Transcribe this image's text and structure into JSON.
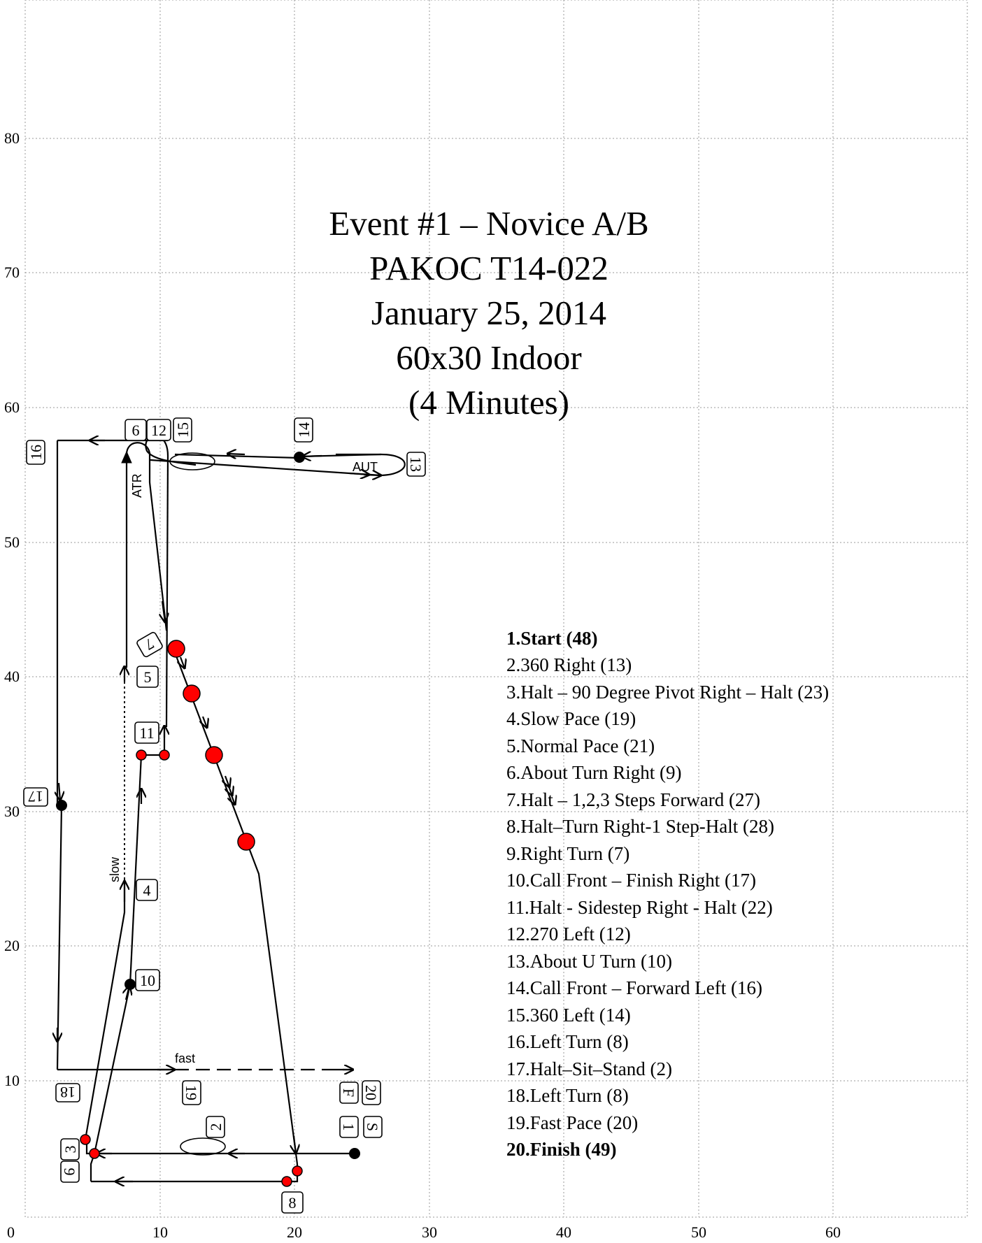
{
  "title": [
    "Event #1 – Novice A/B",
    "PAKOC T14-022",
    "January 25, 2014",
    "60x30 Indoor",
    "(4 Minutes)"
  ],
  "axes": {
    "x_ticks": [
      "0",
      "10",
      "20",
      "30",
      "40",
      "50",
      "60"
    ],
    "y_ticks": [
      "10",
      "20",
      "30",
      "40",
      "50",
      "60",
      "70",
      "80"
    ]
  },
  "legend": [
    {
      "text": "1.Start  (48)",
      "bold": true
    },
    {
      "text": "2.360 Right  (13)",
      "bold": false
    },
    {
      "text": "3.Halt – 90 Degree Pivot Right – Halt (23)",
      "bold": false
    },
    {
      "text": "4.Slow Pace  (19)",
      "bold": false
    },
    {
      "text": "5.Normal Pace  (21)",
      "bold": false
    },
    {
      "text": "6.About Turn Right  (9)",
      "bold": false
    },
    {
      "text": "7.Halt – 1,2,3 Steps Forward (27)",
      "bold": false
    },
    {
      "text": "8.Halt–Turn Right-1 Step-Halt (28)",
      "bold": false
    },
    {
      "text": "9.Right Turn  (7)",
      "bold": false
    },
    {
      "text": "10.Call Front – Finish Right (17)",
      "bold": false
    },
    {
      "text": "11.Halt - Sidestep Right - Halt  (22)",
      "bold": false
    },
    {
      "text": "12.270 Left  (12)",
      "bold": false
    },
    {
      "text": "13.About U Turn  (10)",
      "bold": false
    },
    {
      "text": "14.Call Front – Forward Left (16)",
      "bold": false
    },
    {
      "text": "15.360 Left   (14)",
      "bold": false
    },
    {
      "text": "16.Left Turn (8)",
      "bold": false
    },
    {
      "text": "17.Halt–Sit–Stand (2)",
      "bold": false
    },
    {
      "text": "18.Left Turn (8)",
      "bold": false
    },
    {
      "text": "19.Fast Pace  (20)",
      "bold": false
    },
    {
      "text": "20.Finish  (49)",
      "bold": true
    }
  ],
  "signs": {
    "s1": "1",
    "s2": "2",
    "s3": "3",
    "s4": "4",
    "s5": "5",
    "s6": "6",
    "s7": "7",
    "s8": "8",
    "s9": "9",
    "s10": "10",
    "s11": "11",
    "s12": "12",
    "s13": "13",
    "s14": "14",
    "s15": "15",
    "s16": "16",
    "s17": "17",
    "s18": "18",
    "s19": "19",
    "s20": "20",
    "start": "S",
    "finish": "F"
  },
  "path_labels": {
    "slow": "slow",
    "fast": "fast",
    "atr": "ATR",
    "aut": "AUT"
  },
  "colors": {
    "station_red": "#ff0000",
    "station_black": "#000000",
    "grid": "#9a9a9a"
  }
}
